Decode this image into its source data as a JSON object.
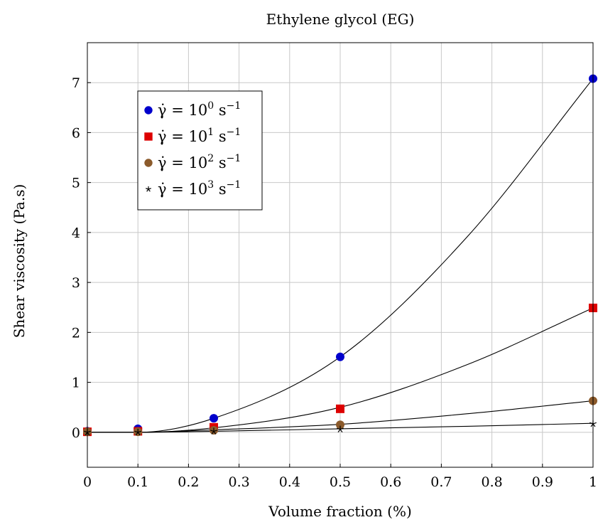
{
  "chart_data": {
    "type": "scatter",
    "title": "Ethylene glycol (EG)",
    "xlabel": "Volume fraction (%)",
    "ylabel": "Shear viscosity (Pa.s)",
    "xlim": [
      0,
      1
    ],
    "ylim": [
      -0.7,
      7.8
    ],
    "x_ticks": [
      "0",
      "0.1",
      "0.2",
      "0.3",
      "0.4",
      "0.5",
      "0.6",
      "0.7",
      "0.8",
      "0.9",
      "1"
    ],
    "y_ticks": [
      "0",
      "1",
      "2",
      "3",
      "4",
      "5",
      "6",
      "7"
    ],
    "grid": true,
    "legend_position": "top-left",
    "x": [
      0,
      0.1,
      0.25,
      0.5,
      1
    ],
    "series": [
      {
        "name": "γ̇ = 10^0 s^−1",
        "label_parts": {
          "base": "γ̇ = 10",
          "exp": "0",
          "unit": " s",
          "unit_exp": "−1"
        },
        "marker": "circle",
        "color": "#0000cc",
        "values": [
          0.02,
          0.07,
          0.28,
          1.51,
          7.08
        ]
      },
      {
        "name": "γ̇ = 10^1 s^−1",
        "label_parts": {
          "base": "γ̇ = 10",
          "exp": "1",
          "unit": " s",
          "unit_exp": "−1"
        },
        "marker": "square",
        "color": "#dd0000",
        "values": [
          0.01,
          0.02,
          0.1,
          0.47,
          2.49
        ]
      },
      {
        "name": "γ̇ = 10^2 s^−1",
        "label_parts": {
          "base": "γ̇ = 10",
          "exp": "2",
          "unit": " s",
          "unit_exp": "−1"
        },
        "marker": "circle",
        "color": "#8b5a2b",
        "values": [
          0.01,
          0.01,
          0.04,
          0.15,
          0.63
        ]
      },
      {
        "name": "γ̇ = 10^3 s^−1",
        "label_parts": {
          "base": "γ̇ = 10",
          "exp": "3",
          "unit": " s",
          "unit_exp": "−1"
        },
        "marker": "star",
        "color": "#000000",
        "values": [
          0.0,
          0.0,
          0.02,
          0.06,
          0.17
        ]
      }
    ],
    "fit_curves": [
      {
        "series": "γ̇ = 10^0 s^−1",
        "x": [
          0,
          0.1,
          0.25,
          0.5,
          0.75,
          1
        ],
        "values": [
          0.0,
          0.0,
          0.28,
          1.51,
          3.9,
          7.08
        ]
      },
      {
        "series": "γ̇ = 10^1 s^−1",
        "x": [
          0,
          0.1,
          0.25,
          0.5,
          0.75,
          1
        ],
        "values": [
          0.0,
          0.0,
          0.09,
          0.5,
          1.35,
          2.49
        ]
      },
      {
        "series": "γ̇ = 10^2 s^−1",
        "x": [
          0,
          0.1,
          0.25,
          0.5,
          0.75,
          1
        ],
        "values": [
          0.0,
          0.0,
          0.05,
          0.16,
          0.37,
          0.63
        ]
      },
      {
        "series": "γ̇ = 10^3 s^−1",
        "x": [
          0,
          0.1,
          0.25,
          0.5,
          0.75,
          1
        ],
        "values": [
          0.0,
          0.0,
          0.02,
          0.07,
          0.12,
          0.18
        ]
      }
    ]
  }
}
